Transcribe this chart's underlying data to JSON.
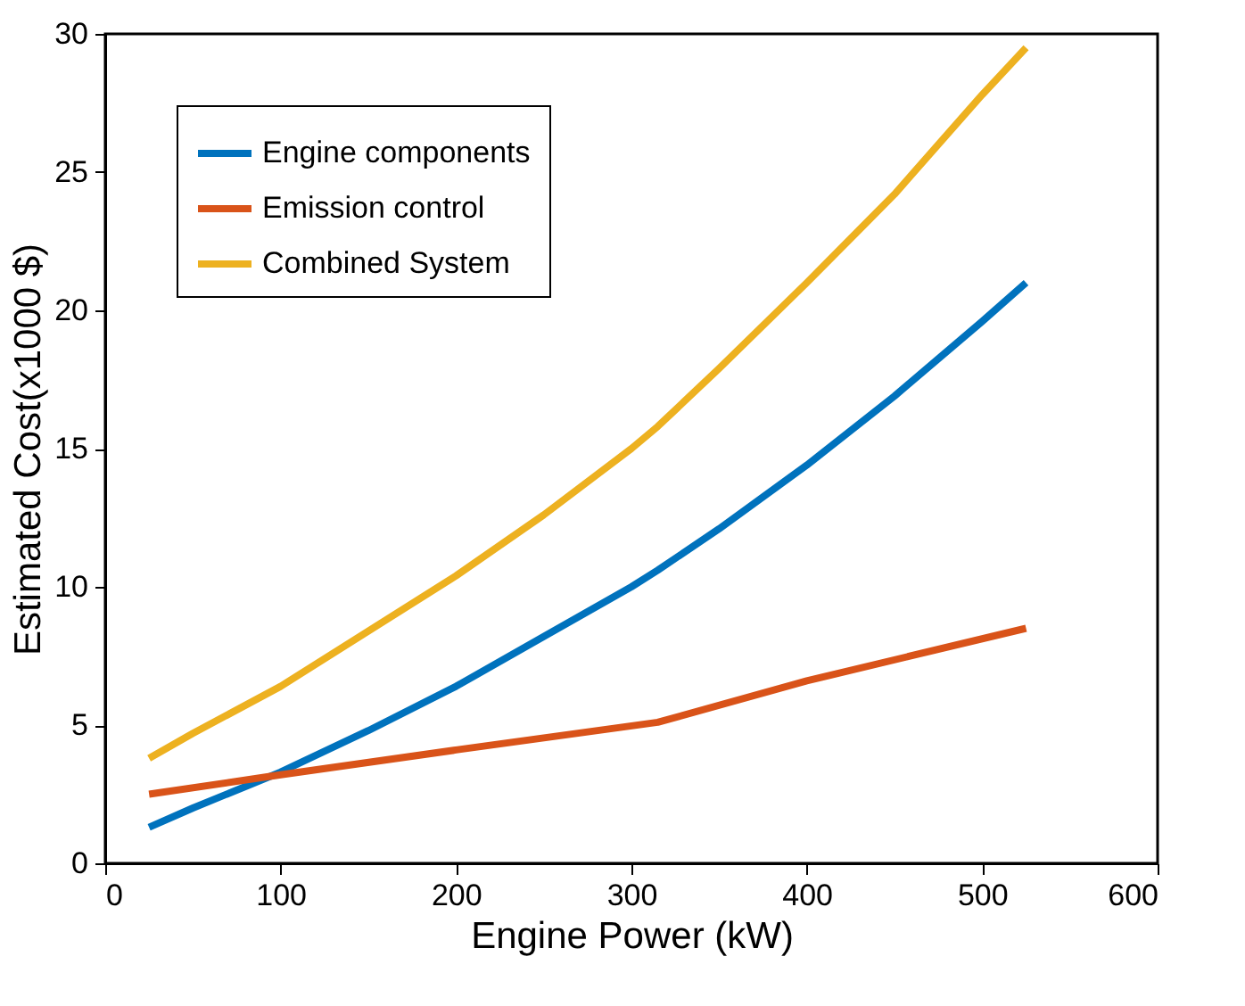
{
  "chart_data": {
    "type": "line",
    "xlabel": "Engine Power (kW)",
    "ylabel": "Estimated Cost(x1000 $)",
    "xlim": [
      0,
      600
    ],
    "xticks": [
      0,
      100,
      200,
      300,
      400,
      500,
      600
    ],
    "ylim": [
      0,
      30
    ],
    "yticks": [
      0,
      5,
      10,
      15,
      20,
      25,
      30
    ],
    "grid": false,
    "legend": "top left",
    "marker": "none",
    "line_style": "solid",
    "series": [
      {
        "name": "Engine components",
        "color": "#0072bd",
        "x": [
          25,
          50,
          100,
          150,
          200,
          250,
          300,
          315,
          350,
          400,
          450,
          500,
          525
        ],
        "values": [
          1.3,
          2.0,
          3.3,
          4.8,
          6.4,
          8.2,
          10.0,
          10.6,
          12.1,
          14.4,
          16.9,
          19.6,
          21
        ]
      },
      {
        "name": "Emission control",
        "color": "#d95319",
        "x": [
          25,
          100,
          200,
          315,
          400,
          525
        ],
        "values": [
          2.5,
          3.2,
          4.1,
          5.1,
          6.6,
          8.5
        ]
      },
      {
        "name": "Combined System",
        "color": "#edb120",
        "x": [
          25,
          50,
          100,
          150,
          200,
          250,
          300,
          315,
          350,
          400,
          450,
          500,
          525
        ],
        "values": [
          3.8,
          4.7,
          6.4,
          8.4,
          10.4,
          12.6,
          15.0,
          15.8,
          17.9,
          21.0,
          24.2,
          27.8,
          29.5
        ]
      }
    ]
  }
}
